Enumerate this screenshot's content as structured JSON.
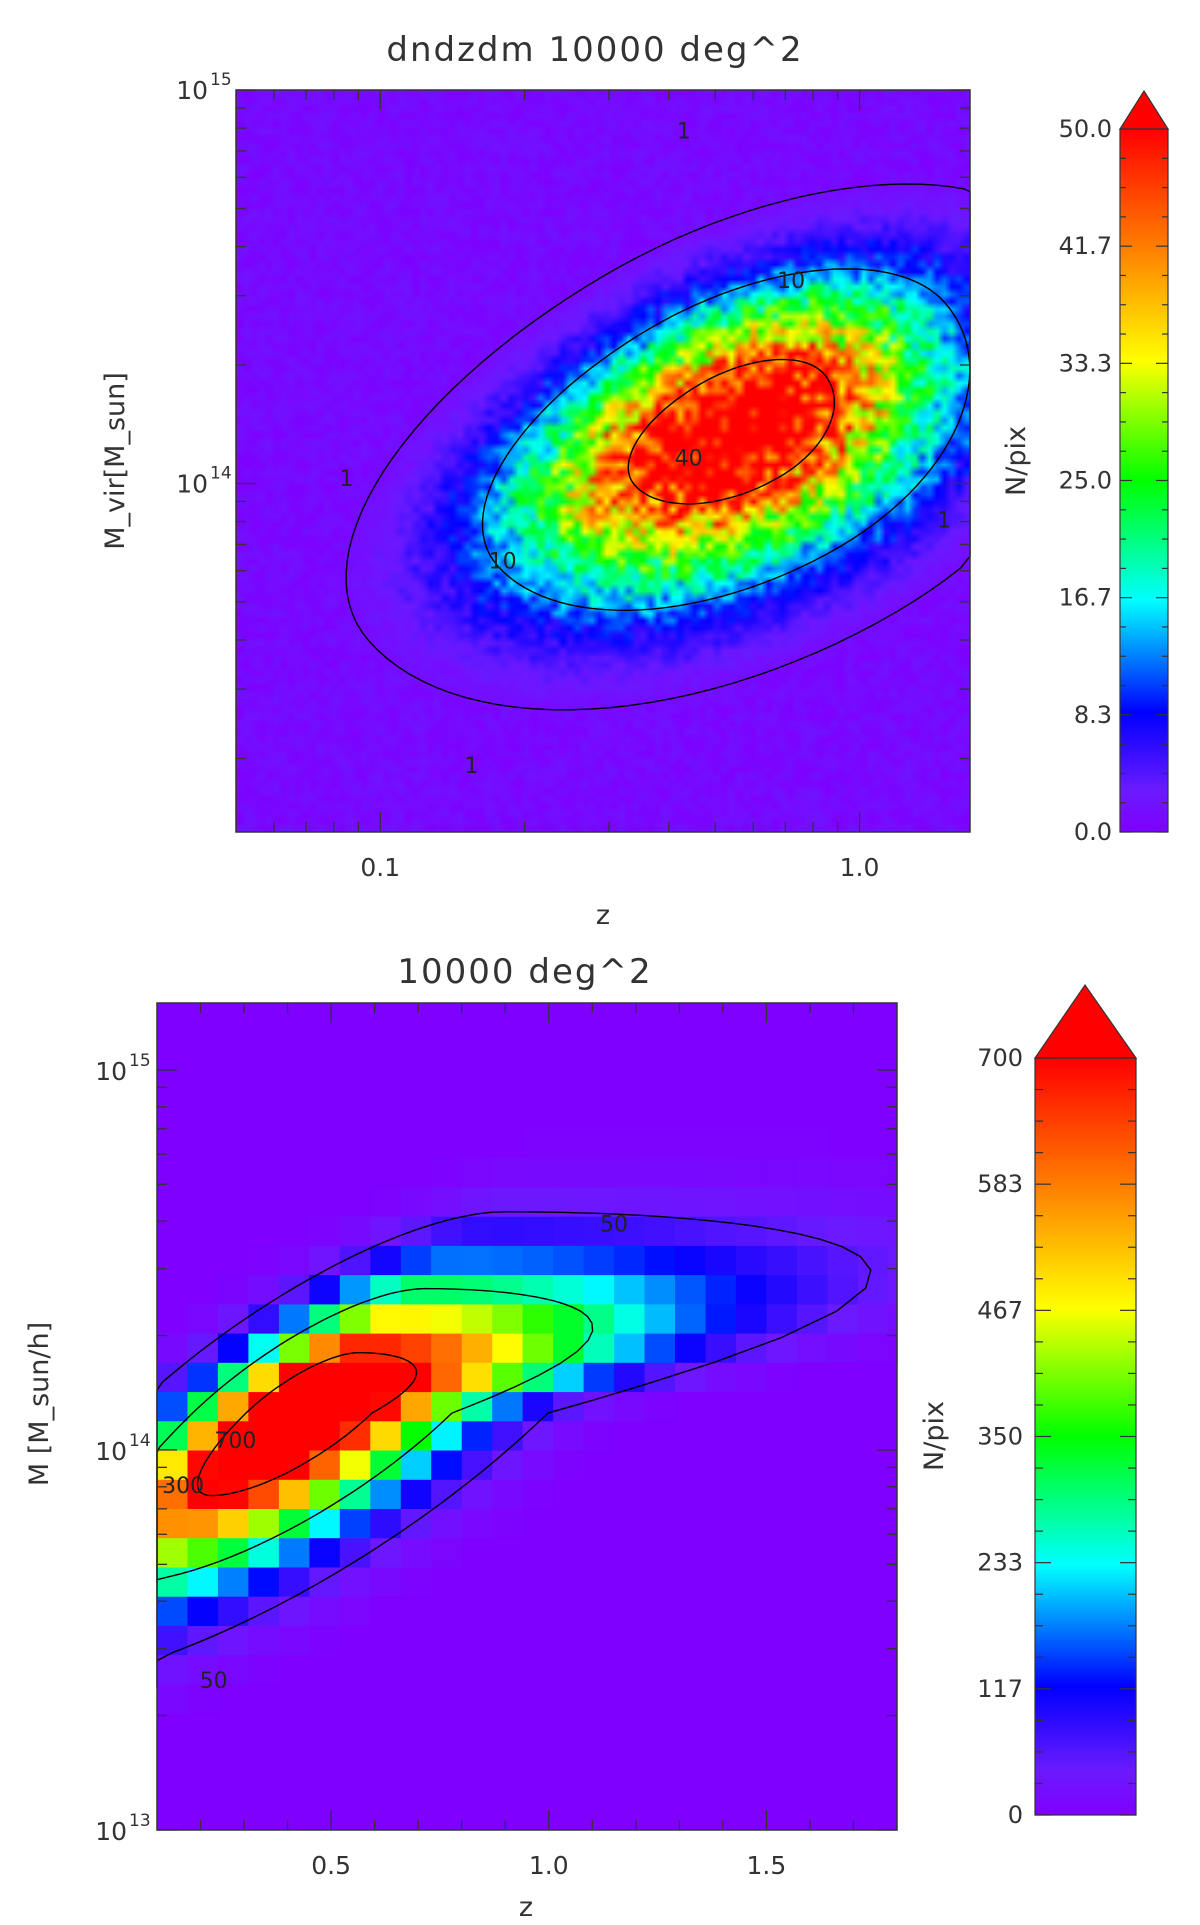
{
  "chart_data": [
    {
      "type": "heatmap",
      "title": "dndzdm 10000 deg^2",
      "xlabel": "z",
      "ylabel": "M_vir[M_sun]",
      "x_scale": "log",
      "y_scale": "log",
      "xlim": [
        0.05,
        1.7
      ],
      "ylim": [
        13000000000000.0,
        1000000000000000.0
      ],
      "x_ticks": [
        {
          "value": 0.1,
          "label": "0.1"
        },
        {
          "value": 1.0,
          "label": "1.0"
        }
      ],
      "y_ticks": [
        {
          "value": 100000000000000.0,
          "label": "10",
          "sup": "14"
        },
        {
          "value": 1000000000000000.0,
          "label": "10",
          "sup": "15"
        }
      ],
      "colorbar": {
        "label": "N/pix",
        "min": 0,
        "max": 50.0,
        "ticks": [
          "0.0",
          "8.3",
          "16.7",
          "25.0",
          "33.3",
          "41.7",
          "50.0"
        ],
        "extend": "max"
      },
      "peak": {
        "z": 0.55,
        "M": 140000000000000.0,
        "value": 50
      },
      "grid": 100,
      "contour_labels": [
        {
          "text": "1",
          "z": 0.43,
          "M": 780000000000000.0
        },
        {
          "text": "1",
          "z": 0.085,
          "M": 102000000000000.0
        },
        {
          "text": "1",
          "z": 0.155,
          "M": 19000000000000.0
        },
        {
          "text": "1",
          "z": 1.5,
          "M": 80000000000000.0
        },
        {
          "text": "10",
          "z": 0.72,
          "M": 325000000000000.0
        },
        {
          "text": "10",
          "z": 0.18,
          "M": 63000000000000.0
        },
        {
          "text": "40",
          "z": 0.44,
          "M": 115000000000000.0
        }
      ]
    },
    {
      "type": "heatmap",
      "title": "10000 deg^2",
      "xlabel": "z",
      "ylabel": "M [M_sun/h]",
      "x_scale": "linear",
      "y_scale": "log",
      "xlim": [
        0.1,
        1.8
      ],
      "ylim": [
        10000000000000.0,
        1500000000000000.0
      ],
      "x_ticks": [
        {
          "value": 0.5,
          "label": "0.5"
        },
        {
          "value": 1.0,
          "label": "1.0"
        },
        {
          "value": 1.5,
          "label": "1.5"
        }
      ],
      "y_ticks": [
        {
          "value": 10000000000000.0,
          "label": "10",
          "sup": "13"
        },
        {
          "value": 100000000000000.0,
          "label": "10",
          "sup": "14"
        },
        {
          "value": 1000000000000000.0,
          "label": "10",
          "sup": "15"
        }
      ],
      "colorbar": {
        "label": "N/pix",
        "min": 0,
        "max": 700,
        "ticks": [
          "0",
          "117",
          "233",
          "350",
          "467",
          "583",
          "700"
        ],
        "extend": "max"
      },
      "peak": {
        "z": 0.42,
        "M": 125000000000000.0,
        "value": 700
      },
      "bin_width_z": 0.07,
      "bins_logM_per_decade": 13,
      "contour_labels": [
        {
          "text": "50",
          "z": 1.15,
          "M": 390000000000000.0
        },
        {
          "text": "50",
          "z": 0.23,
          "M": 24500000000000.0
        },
        {
          "text": "300",
          "z": 0.16,
          "M": 80000000000000.0
        },
        {
          "text": "700",
          "z": 0.28,
          "M": 105000000000000.0
        }
      ]
    }
  ]
}
